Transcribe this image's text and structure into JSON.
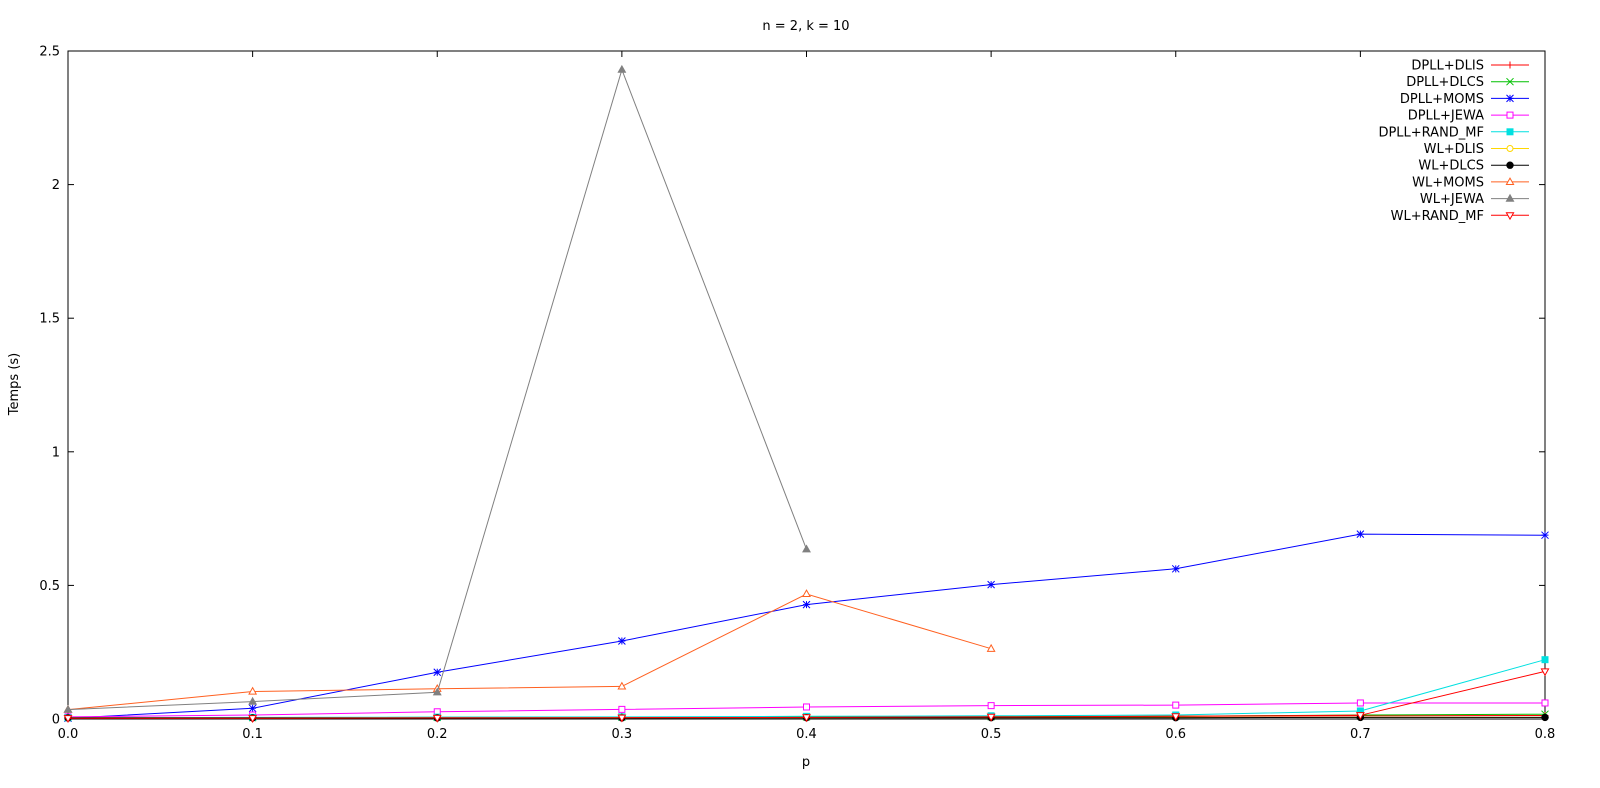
{
  "chart_data": {
    "type": "line",
    "title": "n = 2, k = 10",
    "xlabel": "p",
    "ylabel": "Temps (s)",
    "xlim": [
      0,
      0.8
    ],
    "ylim": [
      0,
      2.5
    ],
    "xticks": [
      "0.0",
      "0.1",
      "0.2",
      "0.3",
      "0.4",
      "0.5",
      "0.6",
      "0.7",
      "0.8"
    ],
    "yticks": [
      "0",
      "0.5",
      "1",
      "1.5",
      "2",
      "2.5"
    ],
    "grid": false,
    "legend_position": "top-right",
    "series": [
      {
        "name": "DPLL+DLIS",
        "color": "#ff0000",
        "marker": "plus",
        "x": [
          0,
          0.1,
          0.2,
          0.3,
          0.4,
          0.5,
          0.6,
          0.7,
          0.8
        ],
        "y": [
          0.005,
          0.005,
          0.006,
          0.007,
          0.008,
          0.009,
          0.01,
          0.012,
          0.013
        ]
      },
      {
        "name": "DPLL+DLCS",
        "color": "#00c000",
        "marker": "cross",
        "x": [
          0,
          0.1,
          0.2,
          0.3,
          0.4,
          0.5,
          0.6,
          0.7,
          0.8
        ],
        "y": [
          0.004,
          0.005,
          0.006,
          0.007,
          0.008,
          0.009,
          0.01,
          0.015,
          0.018
        ]
      },
      {
        "name": "DPLL+MOMS",
        "color": "#0000ff",
        "marker": "star",
        "x": [
          0,
          0.1,
          0.2,
          0.3,
          0.4,
          0.5,
          0.6,
          0.7,
          0.8
        ],
        "y": [
          0.003,
          0.04,
          0.175,
          0.292,
          0.428,
          0.503,
          0.562,
          0.692,
          0.688
        ]
      },
      {
        "name": "DPLL+JEWA",
        "color": "#ff00ff",
        "marker": "square",
        "x": [
          0,
          0.1,
          0.2,
          0.3,
          0.4,
          0.5,
          0.6,
          0.7,
          0.8
        ],
        "y": [
          0.008,
          0.015,
          0.027,
          0.036,
          0.045,
          0.05,
          0.052,
          0.06,
          0.06
        ]
      },
      {
        "name": "DPLL+RAND_MF",
        "color": "#00e0e0",
        "marker": "filled-square",
        "x": [
          0,
          0.1,
          0.2,
          0.3,
          0.4,
          0.5,
          0.6,
          0.7,
          0.8
        ],
        "y": [
          0.005,
          0.006,
          0.007,
          0.008,
          0.01,
          0.012,
          0.015,
          0.03,
          0.222
        ]
      },
      {
        "name": "WL+DLIS",
        "color": "#ffd700",
        "marker": "circle",
        "x": [
          0,
          0.1,
          0.2,
          0.3,
          0.4,
          0.5,
          0.6,
          0.7,
          0.8
        ],
        "y": [
          0.004,
          0.004,
          0.004,
          0.005,
          0.005,
          0.005,
          0.006,
          0.006,
          0.006
        ]
      },
      {
        "name": "WL+DLCS",
        "color": "#000000",
        "marker": "filled-circle",
        "x": [
          0,
          0.1,
          0.2,
          0.3,
          0.4,
          0.5,
          0.6,
          0.7,
          0.8
        ],
        "y": [
          0.004,
          0.004,
          0.004,
          0.004,
          0.005,
          0.005,
          0.005,
          0.006,
          0.006
        ]
      },
      {
        "name": "WL+MOMS",
        "color": "#ff6020",
        "marker": "triangle",
        "x": [
          0,
          0.1,
          0.2,
          0.3,
          0.4,
          0.5
        ],
        "y": [
          0.035,
          0.103,
          0.113,
          0.122,
          0.468,
          0.263
        ]
      },
      {
        "name": "WL+JEWA",
        "color": "#808080",
        "marker": "filled-triangle",
        "x": [
          0,
          0.1,
          0.2,
          0.3,
          0.4
        ],
        "y": [
          0.035,
          0.065,
          0.1,
          2.43,
          0.635
        ]
      },
      {
        "name": "WL+RAND_MF",
        "color": "#ff0000",
        "marker": "triangle-down",
        "x": [
          0,
          0.1,
          0.2,
          0.3,
          0.4,
          0.5,
          0.6,
          0.7,
          0.8
        ],
        "y": [
          0.003,
          0.003,
          0.004,
          0.005,
          0.006,
          0.008,
          0.01,
          0.014,
          0.178
        ]
      }
    ]
  }
}
